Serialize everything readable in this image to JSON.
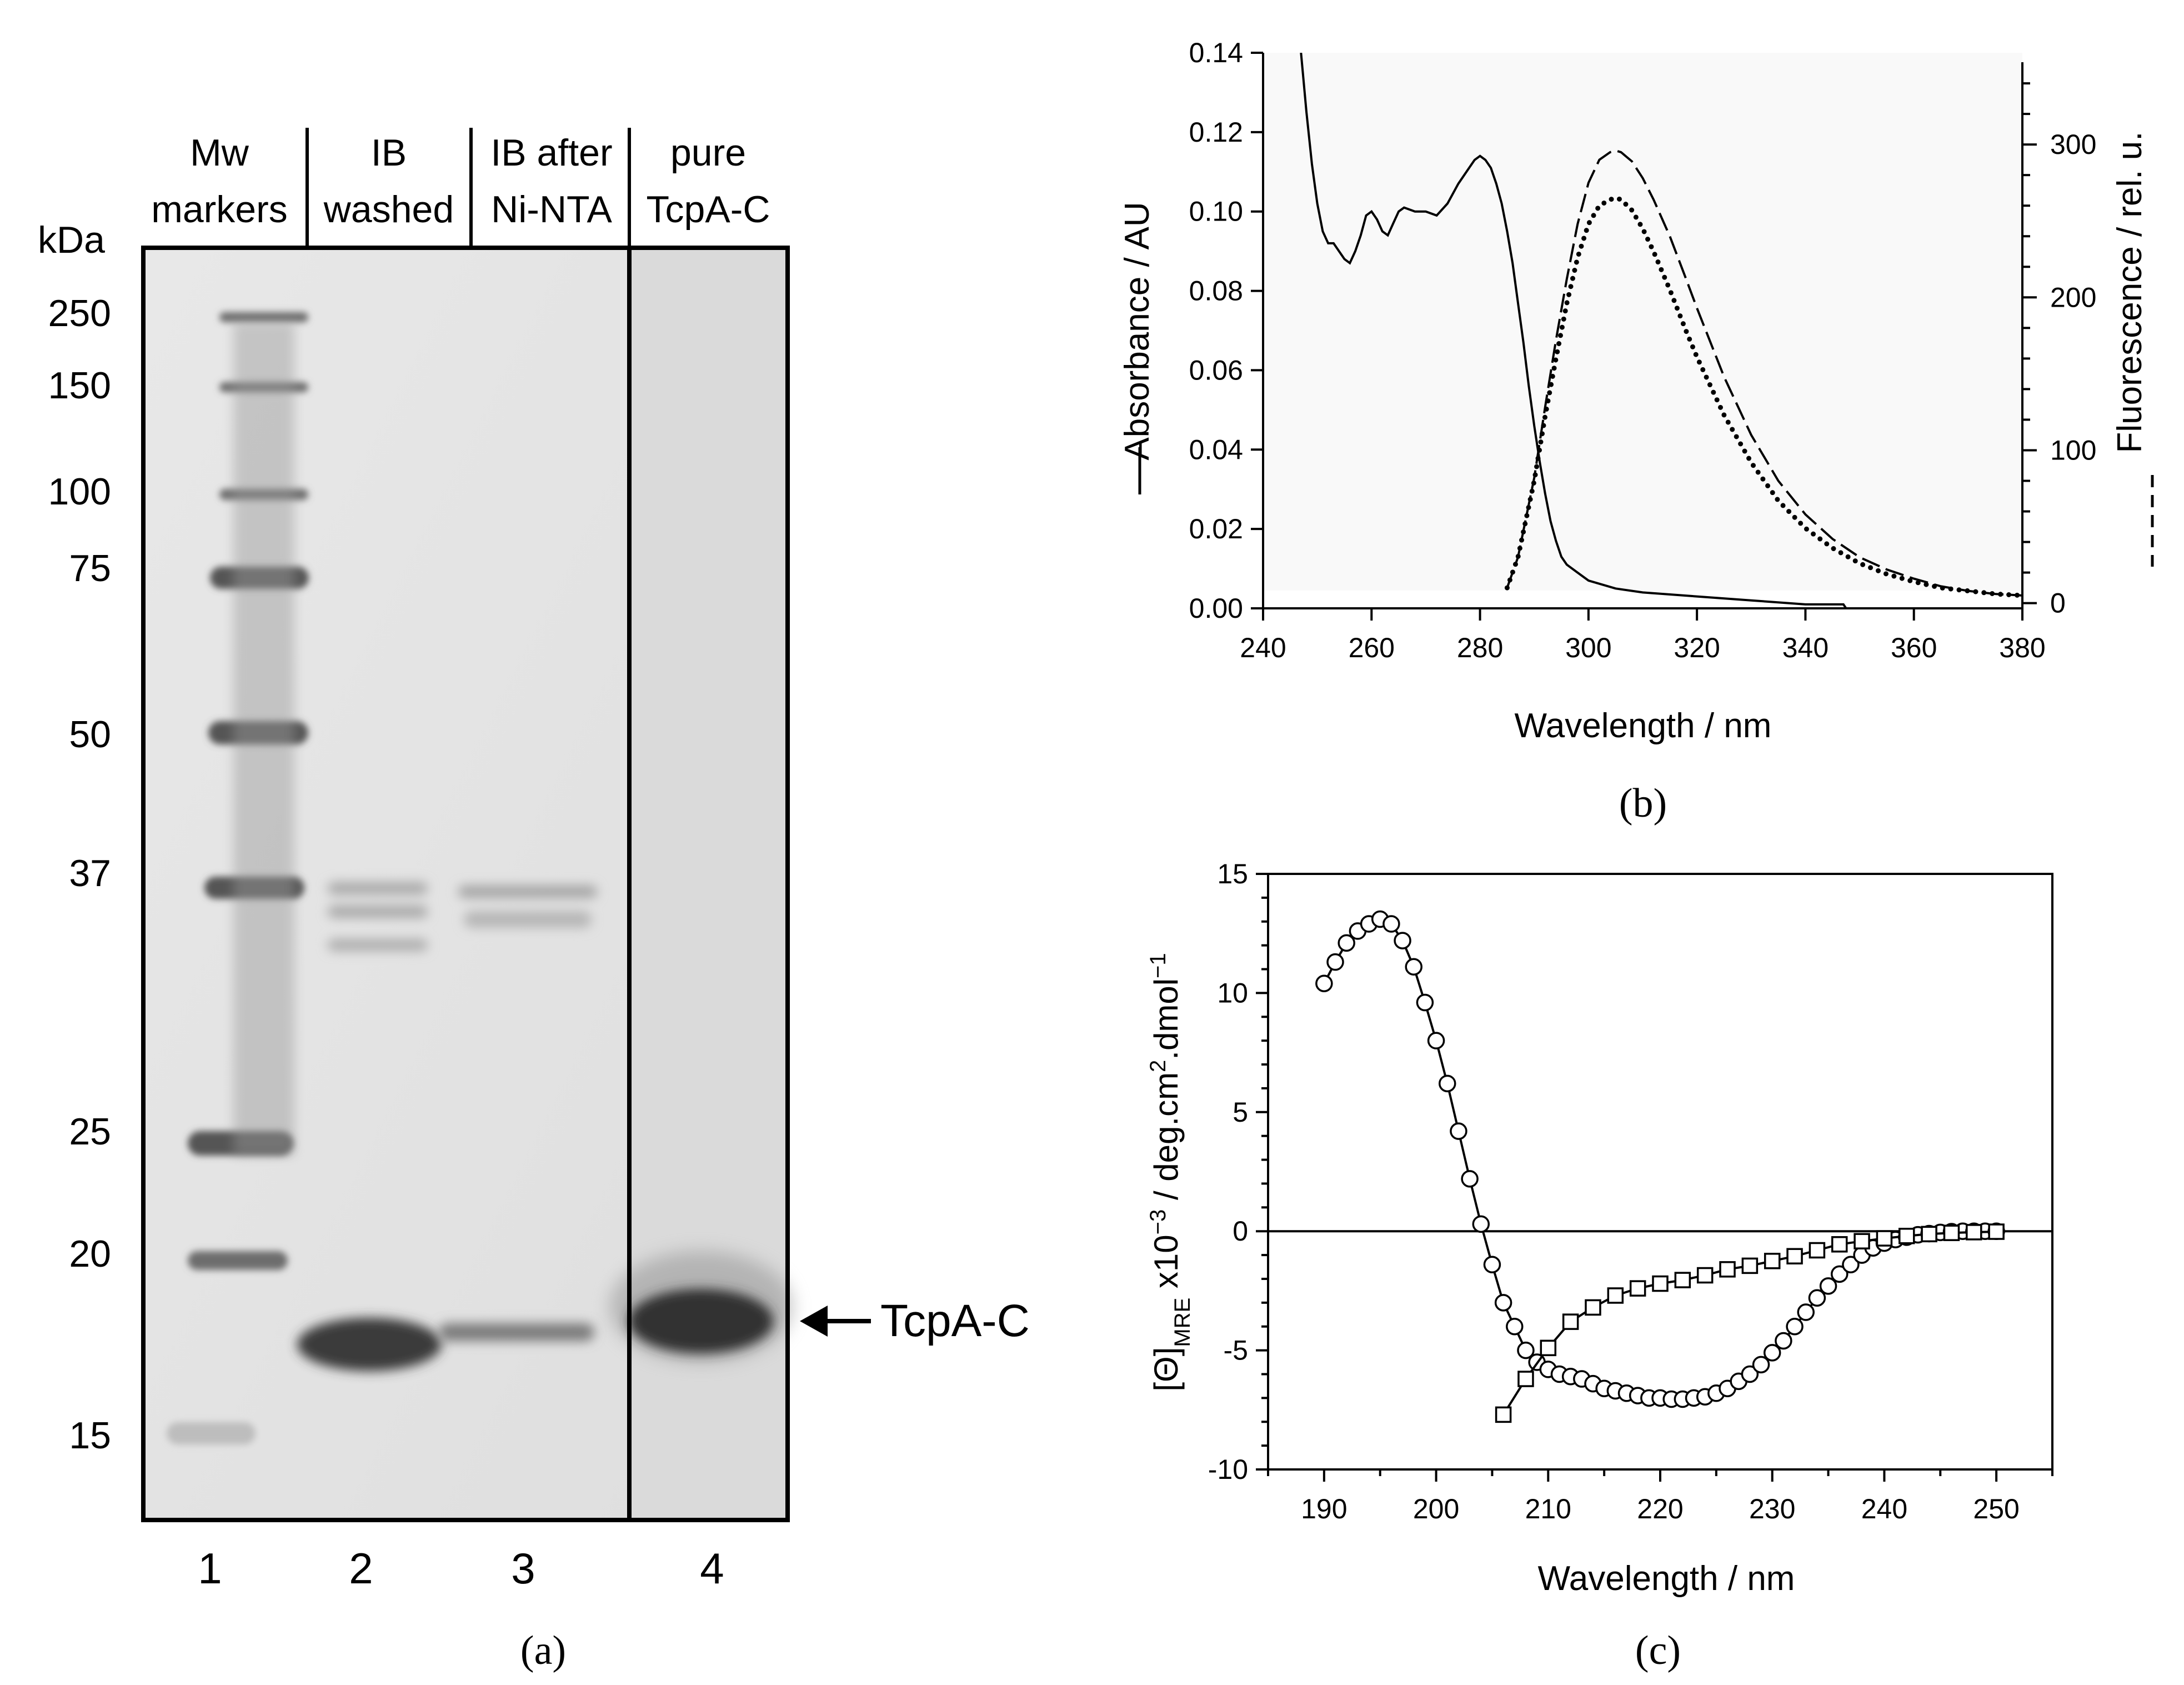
{
  "gel_panel": {
    "caption": "(a)",
    "kda_label": "kDa",
    "marker_labels": [
      "250",
      "150",
      "100",
      "75",
      "50",
      "37",
      "25",
      "20",
      "15"
    ],
    "lane_headers": [
      {
        "line1": "Mw",
        "line2": "markers"
      },
      {
        "line1": "IB",
        "line2": "washed"
      },
      {
        "line1": "IB after",
        "line2": "Ni-NTA"
      },
      {
        "line1": "pure",
        "line2": "TcpA-C"
      }
    ],
    "lane_numbers": [
      "1",
      "2",
      "3",
      "4"
    ],
    "arrow_label": "TcpA-C"
  },
  "chart_data": [
    {
      "type": "line",
      "caption": "(b)",
      "xlabel": "Wavelength / nm",
      "ylabel": "Absorbance / AU",
      "ylabel2": "Fluorescence / rel. u.",
      "xlim": [
        240,
        380
      ],
      "ylim": [
        0,
        0.14
      ],
      "y2lim": [
        -3.4,
        360
      ],
      "x_ticks": [
        240,
        260,
        280,
        300,
        320,
        340,
        360,
        380
      ],
      "y_ticks": [
        "0.00",
        "0.02",
        "0.04",
        "0.06",
        "0.08",
        "0.10",
        "0.12",
        "0.14"
      ],
      "y2_ticks": [
        "0",
        "100",
        "200",
        "300"
      ],
      "series": [
        {
          "name": "Absorbance",
          "axis": "left",
          "style": "solid",
          "x": [
            247,
            248,
            249,
            250,
            251,
            252,
            253,
            254,
            255,
            256,
            257,
            258,
            259,
            260,
            261,
            262,
            263,
            264,
            265,
            266,
            268,
            270,
            272,
            274,
            276,
            278,
            279,
            280,
            281,
            282,
            283,
            284,
            285,
            286,
            287,
            288,
            289,
            290,
            291,
            292,
            293,
            294,
            295,
            296,
            298,
            300,
            305,
            310,
            320,
            330,
            340,
            347,
            348,
            350,
            355,
            360,
            365,
            370,
            375,
            380
          ],
          "y": [
            0.14,
            0.125,
            0.112,
            0.102,
            0.095,
            0.092,
            0.092,
            0.09,
            0.088,
            0.087,
            0.09,
            0.094,
            0.099,
            0.1,
            0.098,
            0.095,
            0.094,
            0.097,
            0.1,
            0.101,
            0.1,
            0.1,
            0.099,
            0.102,
            0.107,
            0.111,
            0.113,
            0.114,
            0.113,
            0.111,
            0.107,
            0.102,
            0.095,
            0.087,
            0.077,
            0.067,
            0.056,
            0.046,
            0.037,
            0.029,
            0.022,
            0.017,
            0.013,
            0.011,
            0.009,
            0.007,
            0.005,
            0.004,
            0.003,
            0.002,
            0.001,
            0.001,
            -0.001,
            -0.001,
            -0.001,
            -0.001,
            -0.001,
            -0.001,
            -0.002,
            -0.001
          ]
        },
        {
          "name": "Fluorescence dashed",
          "axis": "right",
          "style": "dashed",
          "x": [
            285,
            287,
            290,
            292,
            294,
            296,
            298,
            300,
            302,
            304,
            305,
            306,
            308,
            310,
            312,
            315,
            318,
            320,
            325,
            330,
            335,
            340,
            345,
            350,
            355,
            360,
            365,
            370,
            375,
            380
          ],
          "y": [
            10,
            30,
            82,
            128,
            172,
            212,
            248,
            275,
            290,
            295,
            296,
            295,
            289,
            278,
            264,
            240,
            212,
            193,
            148,
            110,
            80,
            58,
            42,
            30,
            22,
            16,
            11,
            8,
            6,
            5
          ]
        },
        {
          "name": "Fluorescence dotted",
          "axis": "right",
          "style": "dotted",
          "x": [
            285,
            287,
            290,
            292,
            294,
            296,
            298,
            300,
            302,
            304,
            305,
            306,
            308,
            310,
            312,
            315,
            318,
            320,
            325,
            330,
            335,
            340,
            345,
            350,
            355,
            360,
            365,
            370,
            375,
            380
          ],
          "y": [
            10,
            30,
            80,
            122,
            160,
            196,
            226,
            248,
            260,
            264,
            265,
            264,
            257,
            245,
            230,
            205,
            178,
            161,
            123,
            92,
            67,
            49,
            36,
            26,
            19,
            14,
            10,
            8,
            6,
            5
          ]
        }
      ]
    },
    {
      "type": "line",
      "caption": "(c)",
      "xlabel": "Wavelength / nm",
      "ylabel_parts": [
        "[Θ]",
        "MRE",
        " x10",
        "−3",
        " / deg.cm",
        "2",
        ".dmol",
        "−1"
      ],
      "xlim": [
        185,
        255
      ],
      "ylim": [
        -10,
        15
      ],
      "x_ticks": [
        190,
        200,
        210,
        220,
        230,
        240,
        250
      ],
      "y_ticks": [
        "-10",
        "-5",
        "0",
        "5",
        "10",
        "15"
      ],
      "zero_line": true,
      "series": [
        {
          "name": "circles",
          "marker": "circle",
          "x": [
            190,
            191,
            192,
            193,
            194,
            195,
            196,
            197,
            198,
            199,
            200,
            201,
            202,
            203,
            204,
            205,
            206,
            207,
            208,
            209,
            210,
            211,
            212,
            213,
            214,
            215,
            216,
            217,
            218,
            219,
            220,
            221,
            222,
            223,
            224,
            225,
            226,
            227,
            228,
            229,
            230,
            231,
            232,
            233,
            234,
            235,
            236,
            237,
            238,
            239,
            240,
            241,
            242,
            243,
            244,
            245,
            246,
            247,
            248,
            249,
            250
          ],
          "y": [
            10.4,
            11.3,
            12.1,
            12.6,
            12.9,
            13.1,
            12.9,
            12.2,
            11.1,
            9.6,
            8.0,
            6.2,
            4.2,
            2.2,
            0.3,
            -1.4,
            -3.0,
            -4.0,
            -5.0,
            -5.5,
            -5.8,
            -6.0,
            -6.1,
            -6.2,
            -6.4,
            -6.6,
            -6.7,
            -6.8,
            -6.9,
            -7.0,
            -7.0,
            -7.05,
            -7.05,
            -7.0,
            -6.95,
            -6.8,
            -6.6,
            -6.3,
            -6.0,
            -5.6,
            -5.1,
            -4.6,
            -4.0,
            -3.4,
            -2.8,
            -2.3,
            -1.8,
            -1.4,
            -1.0,
            -0.7,
            -0.5,
            -0.35,
            -0.25,
            -0.15,
            -0.1,
            -0.05,
            -0.02,
            0.0,
            0.0,
            0.0,
            0.0
          ]
        },
        {
          "name": "squares",
          "marker": "square",
          "x": [
            206,
            208,
            210,
            212,
            214,
            216,
            218,
            220,
            222,
            224,
            226,
            228,
            230,
            232,
            234,
            236,
            238,
            240,
            242,
            244,
            246,
            248,
            250
          ],
          "y": [
            -7.7,
            -6.2,
            -4.9,
            -3.8,
            -3.2,
            -2.7,
            -2.4,
            -2.2,
            -2.05,
            -1.85,
            -1.6,
            -1.45,
            -1.25,
            -1.05,
            -0.8,
            -0.55,
            -0.42,
            -0.3,
            -0.2,
            -0.12,
            -0.07,
            -0.04,
            -0.02
          ]
        }
      ]
    }
  ]
}
